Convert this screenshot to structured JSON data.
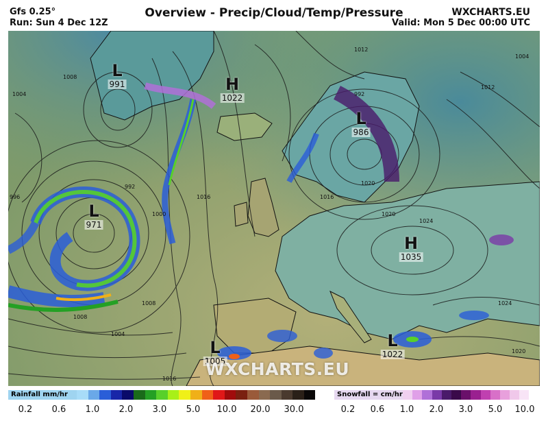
{
  "header": {
    "model": "Gfs 0.25°",
    "run": "Run: Sun 4 Dec 12Z",
    "title": "Overview - Precip/Cloud/Temp/Pressure",
    "brand": "WXCHARTS.EU",
    "valid": "Valid: Mon 5 Dec 00:00 UTC"
  },
  "watermark": "WXCHARTS.EU",
  "pressure_centers": [
    {
      "symbol": "L",
      "value": "991"
    },
    {
      "symbol": "H",
      "value": "1022"
    },
    {
      "symbol": "L",
      "value": "986"
    },
    {
      "symbol": "L",
      "value": "971"
    },
    {
      "symbol": "H",
      "value": "1035"
    },
    {
      "symbol": "L",
      "value": "1005"
    },
    {
      "symbol": "L",
      "value": "1022"
    }
  ],
  "isobar_labels": [
    "1004",
    "1008",
    "992",
    "996",
    "1000",
    "1016",
    "1012",
    "1024",
    "1020",
    "1004",
    "1012",
    "1008",
    "992",
    "1016",
    "1020",
    "1008",
    "1004",
    "1024",
    "1020",
    "1016"
  ],
  "legend": {
    "rain": {
      "title": "Rainfall mm/hr",
      "colors": [
        "#a8dcf8",
        "#6aa8e8",
        "#2a5ed8",
        "#1826a8",
        "#0a0a6a",
        "#1a6a1a",
        "#24a024",
        "#58d02a",
        "#a8f018",
        "#f0f018",
        "#f0b018",
        "#f06018",
        "#e01818",
        "#a00c0c",
        "#7a2010",
        "#9a5a3a",
        "#8a6a50",
        "#6a5a4a",
        "#4a3a2e",
        "#2a2018",
        "#0a0808"
      ],
      "ticks": [
        "0.2",
        "0.6",
        "1.0",
        "2.0",
        "3.0",
        "5.0",
        "10.0",
        "20.0",
        "30.0"
      ]
    },
    "snow": {
      "title": "Snowfall = cm/hr",
      "colors": [
        "#f0d0f0",
        "#e0a0e8",
        "#b070d8",
        "#7a3aa8",
        "#4a1a6a",
        "#3a0a4a",
        "#6a106a",
        "#9a2090",
        "#c040b0",
        "#d870c8",
        "#e8a0dc",
        "#f0c8ea",
        "#f8e4f6",
        "#ffffff"
      ],
      "ticks": [
        "0.2",
        "0.6",
        "1.0",
        "2.0",
        "3.0",
        "5.0",
        "10.0"
      ]
    }
  },
  "colors": {
    "ocean": "#6e8f6a",
    "land": "#8aa45a",
    "cold_land": "#5fa0a0"
  }
}
